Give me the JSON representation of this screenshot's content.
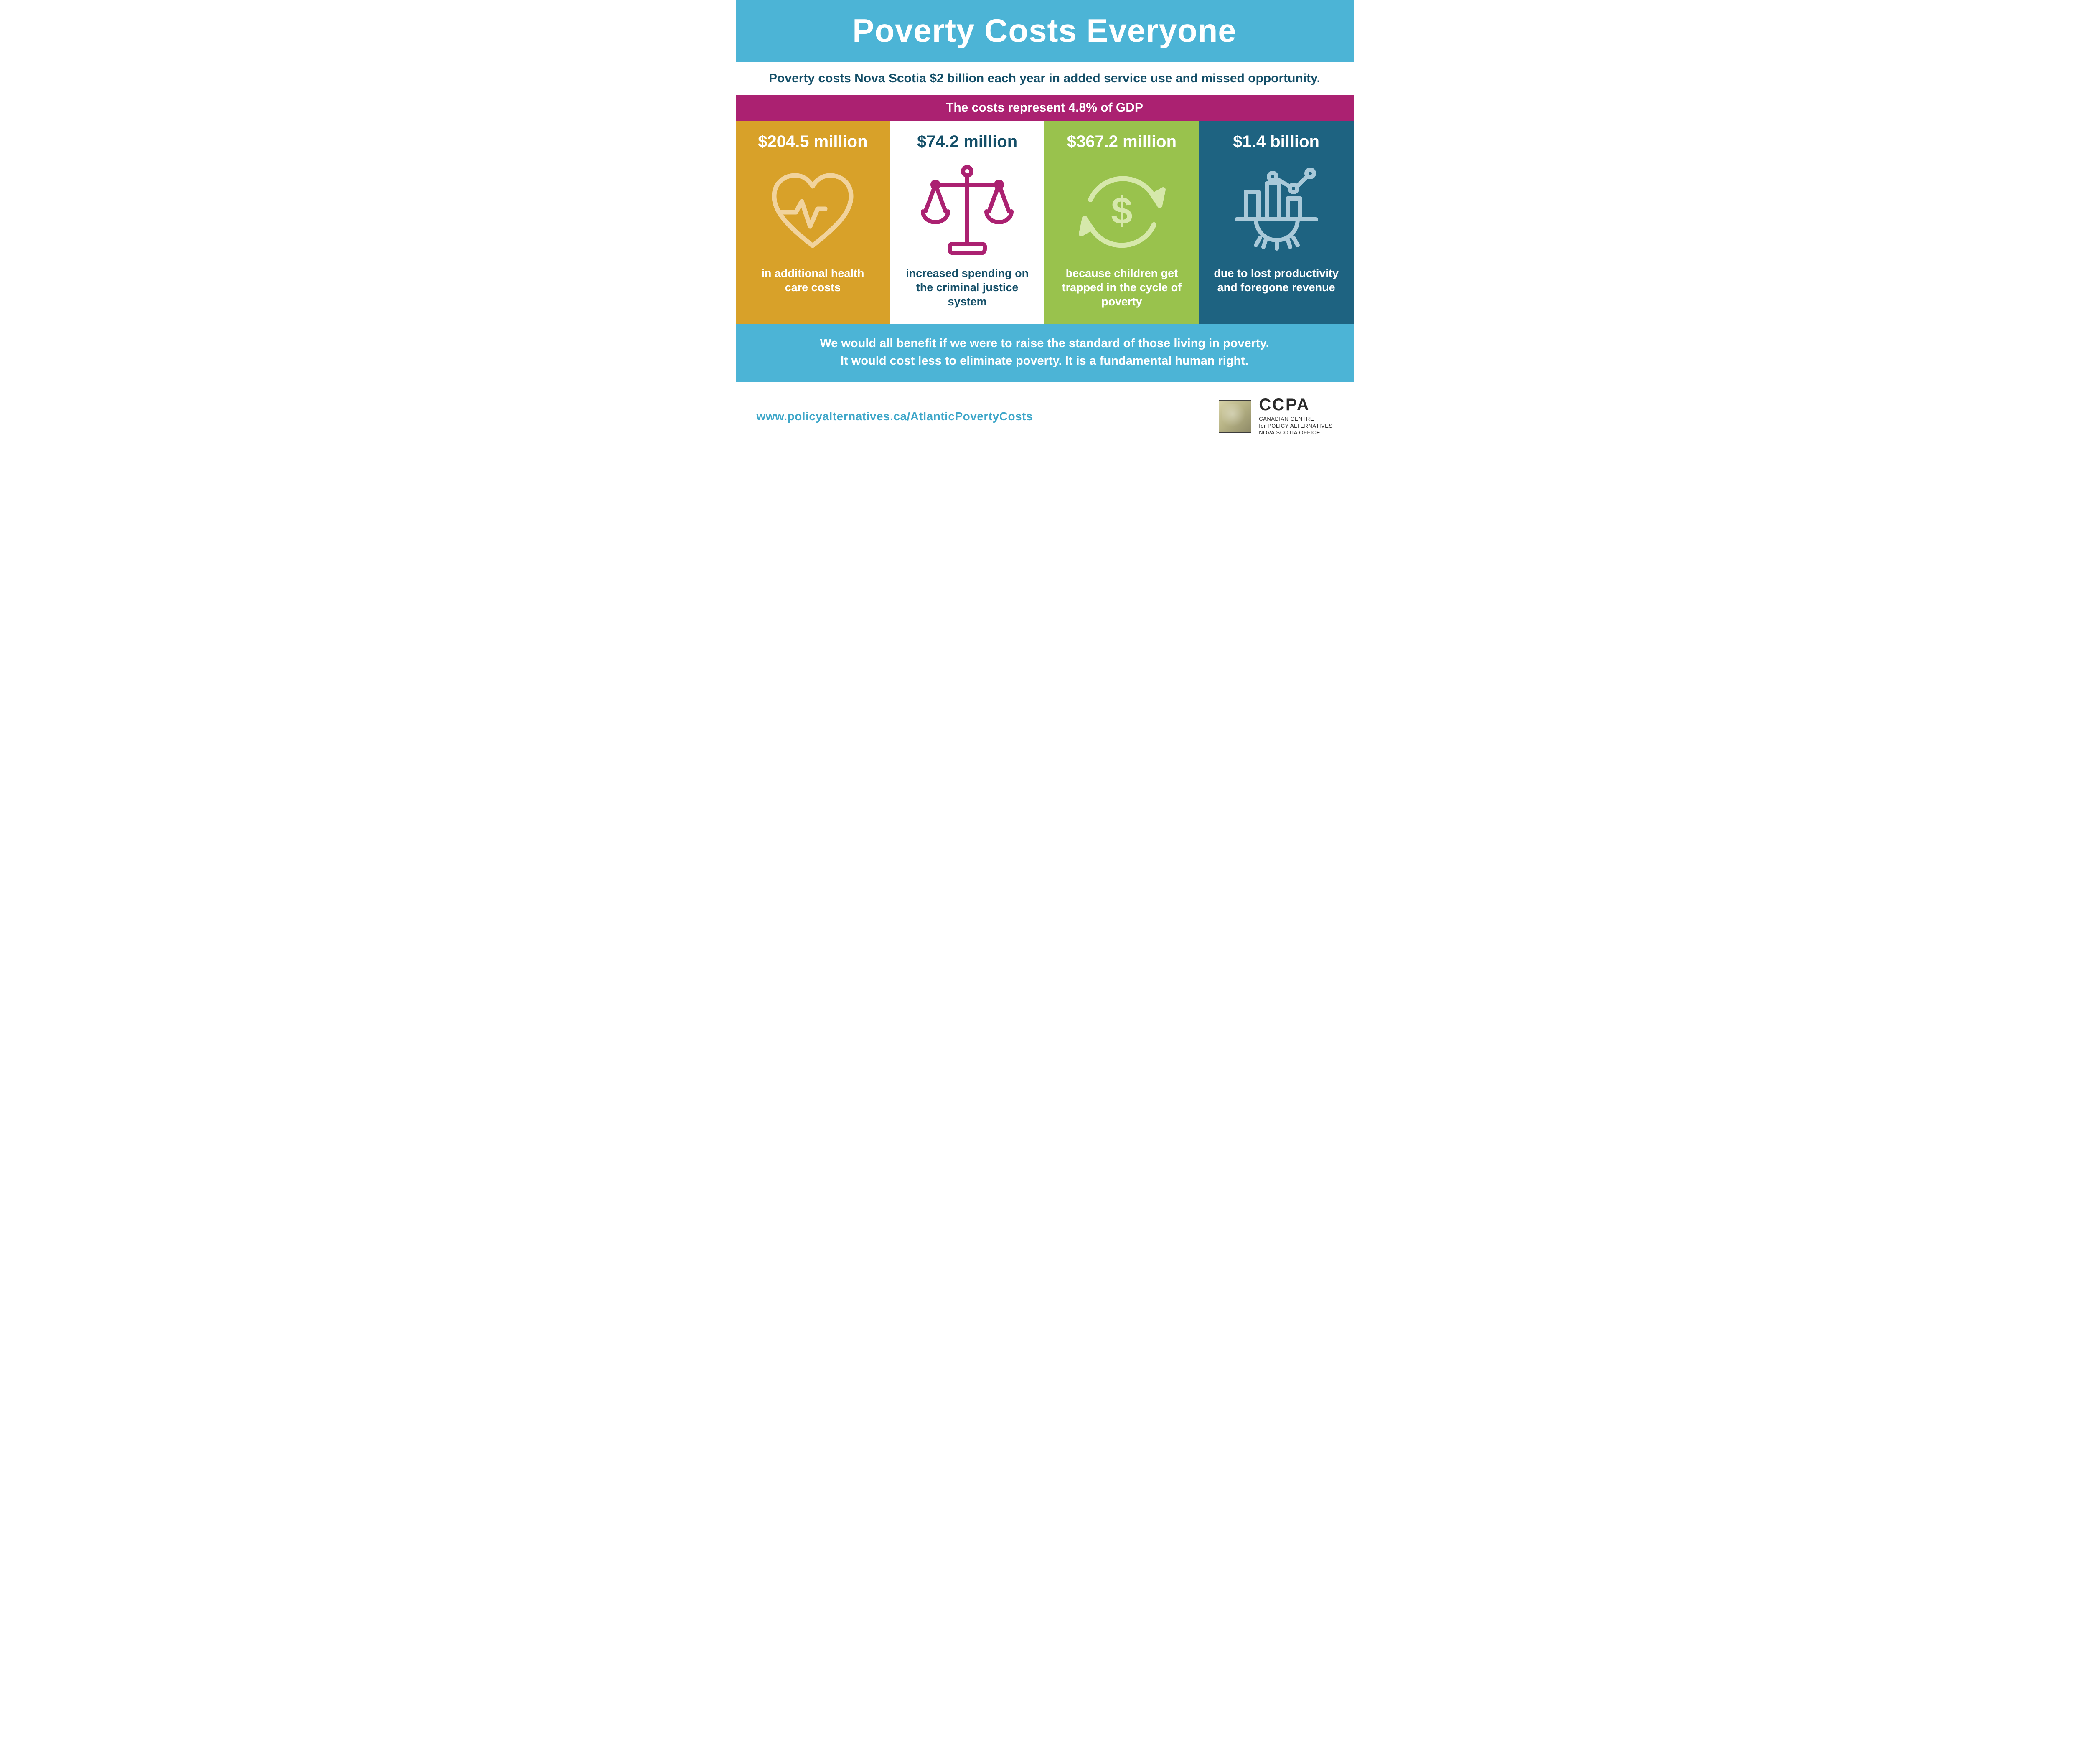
{
  "colors": {
    "blue_band": "#4cb4d6",
    "white": "#ffffff",
    "dark_teal_text": "#144f68",
    "magenta_band": "#ab2171",
    "card_gold": "#d8a129",
    "card_white": "#ffffff",
    "card_green": "#99c24d",
    "card_teal": "#1e6381",
    "gold_icon": "#f1d39d",
    "magenta_icon": "#ab2171",
    "green_icon": "#d6e8ab",
    "teal_icon": "#a9c9d9",
    "url_color": "#3fa7c9",
    "logo_text": "#2b2b2b"
  },
  "typography": {
    "title_fontsize": 78,
    "subtitle_fontsize": 30,
    "gdp_fontsize": 30,
    "amount_fontsize": 40,
    "caption_fontsize": 27,
    "closing_fontsize": 29,
    "url_fontsize": 28
  },
  "title": "Poverty Costs Everyone",
  "subtitle": "Poverty costs Nova Scotia $2 billion each year in added service use and missed opportunity.",
  "gdp_line": "The costs represent 4.8% of GDP",
  "cards": [
    {
      "amount": "$204.5 million",
      "caption": "in additional health care costs",
      "bg": "#d8a129",
      "text": "#ffffff",
      "icon_color": "#f1d39d",
      "icon": "heart"
    },
    {
      "amount": "$74.2 million",
      "caption": "increased spending on the criminal justice system",
      "bg": "#ffffff",
      "text": "#144f68",
      "icon_color": "#ab2171",
      "icon": "scales"
    },
    {
      "amount": "$367.2 million",
      "caption": "because children get trapped in the cycle of poverty",
      "bg": "#99c24d",
      "text": "#ffffff",
      "icon_color": "#d6e8ab",
      "icon": "cycle"
    },
    {
      "amount": "$1.4 billion",
      "caption": "due to lost productivity and foregone revenue",
      "bg": "#1e6381",
      "text": "#ffffff",
      "icon_color": "#a9c9d9",
      "icon": "chart-gear"
    }
  ],
  "closing": "We would all benefit if we were to raise the standard of those living in poverty.\nIt would cost less to eliminate poverty.  It is a fundamental human right.",
  "url": "www.policyalternatives.ca/AtlanticPovertyCosts",
  "logo": {
    "acronym": "CCPA",
    "line1": "CANADIAN CENTRE",
    "line2": "for POLICY ALTERNATIVES",
    "line3": "NOVA SCOTIA OFFICE"
  }
}
